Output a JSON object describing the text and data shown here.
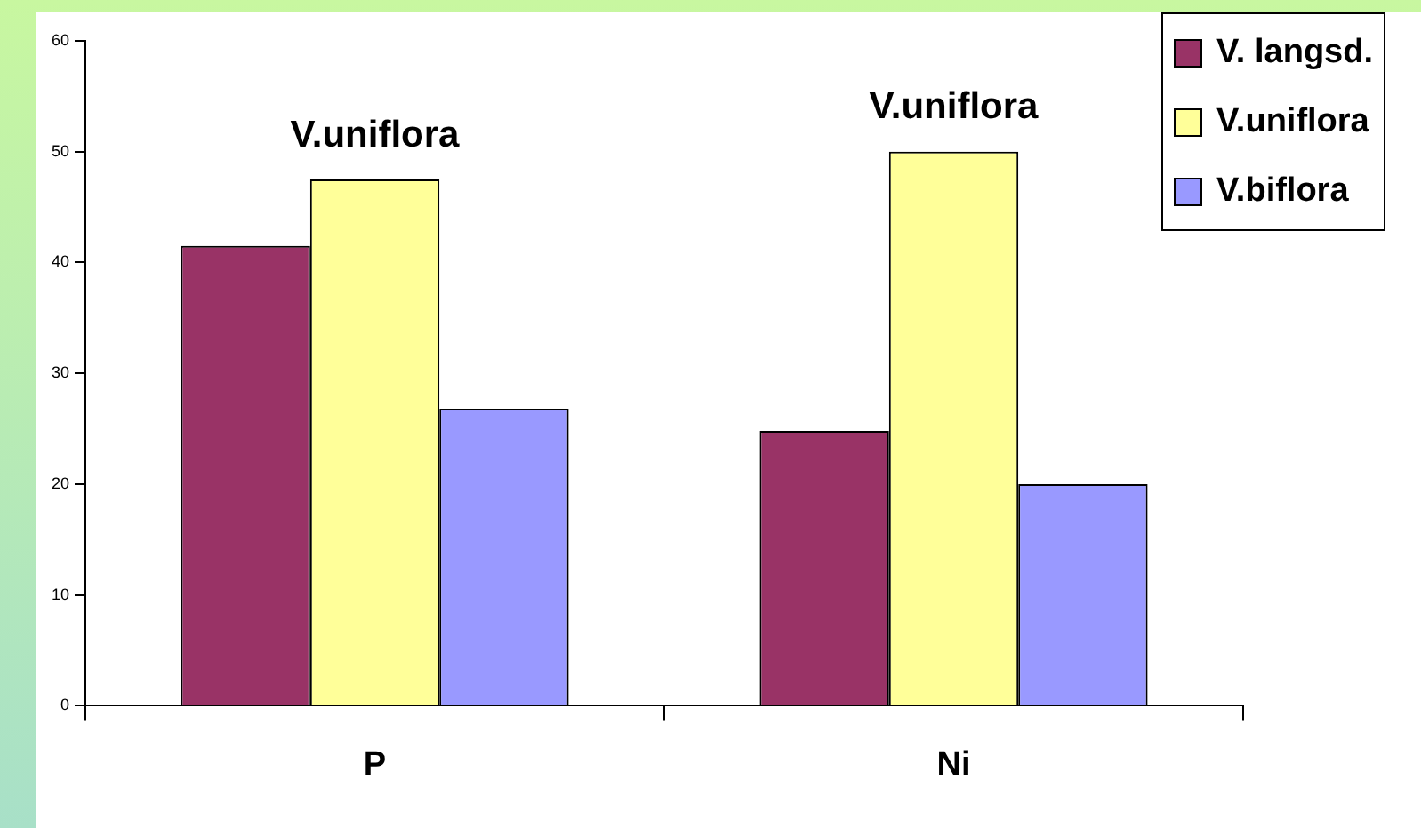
{
  "chart_data": {
    "type": "bar",
    "categories": [
      "P",
      "Ni"
    ],
    "series": [
      {
        "name": "V. langsd.",
        "color": "#993366",
        "values": [
          41.5,
          24.8
        ]
      },
      {
        "name": "V.uniflora",
        "color": "#ffff99",
        "values": [
          47.5,
          50.0
        ]
      },
      {
        "name": "V.biflora",
        "color": "#9999ff",
        "values": [
          26.8,
          20.0
        ]
      }
    ],
    "ylim": [
      0,
      60
    ],
    "yticks": [
      0,
      10,
      20,
      30,
      40,
      50,
      60
    ],
    "grid": false,
    "legend": "top right",
    "annotations": [
      {
        "text": "V.uniflora",
        "x": "P",
        "y": 47.5
      },
      {
        "text": "V.uniflora",
        "x": "Ni",
        "y": 50.0
      }
    ]
  }
}
